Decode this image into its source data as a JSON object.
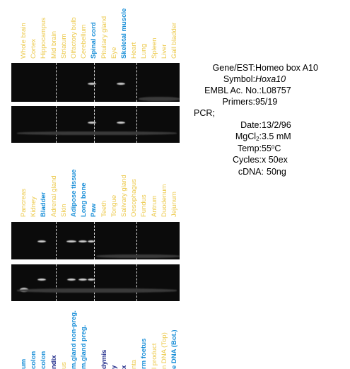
{
  "colors": {
    "tissue_yellow": "#ecc94b",
    "tissue_blue": "#1a8fd8",
    "tissue_navy": "#1f2a8a",
    "gel_background": "#0b0b0b",
    "band": "#cfcfcf"
  },
  "panel1": {
    "lanes": [
      {
        "label": "Whole brain",
        "color": "yellow"
      },
      {
        "label": "Cortex",
        "color": "yellow"
      },
      {
        "label": "Hippocampus",
        "color": "yellow"
      },
      {
        "label": "Mid brain",
        "color": "yellow"
      },
      {
        "label": "Striatum",
        "color": "yellow"
      },
      {
        "label": "Olfactory bulb",
        "color": "yellow"
      },
      {
        "label": "Cerebellum",
        "color": "yellow"
      },
      {
        "label": "Spinal cord",
        "color": "blue"
      },
      {
        "label": "Pituitary gland",
        "color": "yellow"
      },
      {
        "label": "Eye",
        "color": "yellow"
      },
      {
        "label": "Skeletal muscle",
        "color": "blue"
      },
      {
        "label": "Heart",
        "color": "yellow"
      },
      {
        "label": "Lung",
        "color": "yellow"
      },
      {
        "label": "Spleen",
        "color": "yellow"
      },
      {
        "label": "Liver",
        "color": "yellow"
      },
      {
        "label": "Gall bladder",
        "color": "yellow"
      }
    ]
  },
  "panel2": {
    "lanes": [
      {
        "label": "Pancreas",
        "color": "yellow"
      },
      {
        "label": "Kidney",
        "color": "yellow"
      },
      {
        "label": "Bladder",
        "color": "blue"
      },
      {
        "label": "Adrenal gland",
        "color": "yellow"
      },
      {
        "label": "Skin",
        "color": "yellow"
      },
      {
        "label": "Adipose tissue",
        "color": "blue"
      },
      {
        "label": "Long bone",
        "color": "blue"
      },
      {
        "label": "Paw",
        "color": "blue"
      },
      {
        "label": "Teeth",
        "color": "yellow"
      },
      {
        "label": "Tongue",
        "color": "yellow"
      },
      {
        "label": "Salivary gland",
        "color": "yellow"
      },
      {
        "label": "Oesophagus",
        "color": "yellow"
      },
      {
        "label": "Fundus",
        "color": "yellow"
      },
      {
        "label": "Antrum",
        "color": "yellow"
      },
      {
        "label": "Duodenum",
        "color": "yellow"
      },
      {
        "label": "Jejunum",
        "color": "yellow"
      }
    ]
  },
  "panel3": {
    "lanes": [
      {
        "label": "um",
        "color": "blue"
      },
      {
        "label": "colon",
        "color": "blue"
      },
      {
        "label": "colon",
        "color": "blue"
      },
      {
        "label": "ndix",
        "color": "navy"
      },
      {
        "label": "us",
        "color": "yellow"
      },
      {
        "label": "m.gland non-preg.",
        "color": "blue"
      },
      {
        "label": "m.gland preg.",
        "color": "blue"
      },
      {
        "label": "",
        "color": "yellow"
      },
      {
        "label": "dymis",
        "color": "navy"
      },
      {
        "label": "y",
        "color": "navy"
      },
      {
        "label": "x",
        "color": "navy"
      },
      {
        "label": "nta",
        "color": "yellow"
      },
      {
        "label": "rm foetus",
        "color": "blue"
      },
      {
        "label": "l product",
        "color": "yellow"
      },
      {
        "label": "n DNA (Top)",
        "color": "yellow"
      },
      {
        "label": "e DNA (Bot.)",
        "color": "blue"
      }
    ]
  },
  "info": {
    "gene_label": "Gene/EST:",
    "gene_value": "Homeo box A10",
    "symbol_label": "Symbol:",
    "symbol_value": "Hoxa10",
    "embl_label": "EMBL Ac. No.:",
    "embl_value": "L08757",
    "primers_label": "Primers:",
    "primers_value": "95/19",
    "pcr_label": "PCR;",
    "date_label": "Date:",
    "date_value": "13/2/96",
    "mgcl_label_a": "MgCl",
    "mgcl_label_sub": "2",
    "mgcl_label_b": ":",
    "mgcl_value": "3.5 mM",
    "temp_label": "Temp:",
    "temp_value_a": "55",
    "temp_value_sup": "o",
    "temp_value_b": "C",
    "cycles_label": "Cycles:",
    "cycles_value": "x 50ex",
    "cdna_label": "cDNA:",
    "cdna_value": "50ng"
  }
}
